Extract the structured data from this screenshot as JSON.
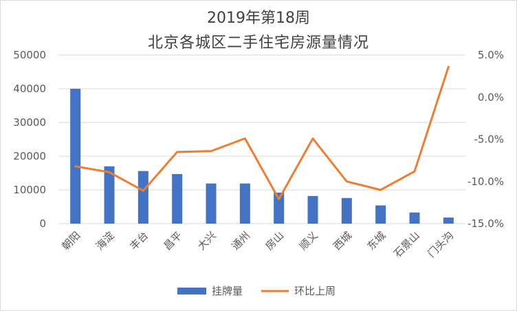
{
  "chart_data": {
    "type": "bar+line",
    "title": "2019年第18周",
    "subtitle": "北京各城区二手住宅房源量情况",
    "categories": [
      "朝阳",
      "海淀",
      "丰台",
      "昌平",
      "大兴",
      "通州",
      "房山",
      "顺义",
      "西城",
      "东城",
      "石景山",
      "门头沟"
    ],
    "series": [
      {
        "name": "挂牌量",
        "type": "bar",
        "axis": "left",
        "color": "#4472C4",
        "values": [
          40000,
          17000,
          15600,
          14700,
          11900,
          11900,
          9200,
          8200,
          7600,
          5400,
          3300,
          1800
        ]
      },
      {
        "name": "环比上周",
        "type": "line",
        "axis": "right",
        "color": "#ED7D31",
        "values": [
          -8.2,
          -8.9,
          -11.1,
          -6.5,
          -6.4,
          -4.9,
          -12.1,
          -4.9,
          -10.0,
          -11.0,
          -8.8,
          3.6
        ]
      }
    ],
    "y_left": {
      "min": 0,
      "max": 50000,
      "ticks": [
        "0",
        "10000",
        "20000",
        "30000",
        "40000",
        "50000"
      ]
    },
    "y_right": {
      "min": -15,
      "max": 5,
      "ticks": [
        "-15.0%",
        "-10.0%",
        "-5.0%",
        "0.0%",
        "5.0%"
      ]
    },
    "grid": true,
    "legend_position": "bottom"
  }
}
